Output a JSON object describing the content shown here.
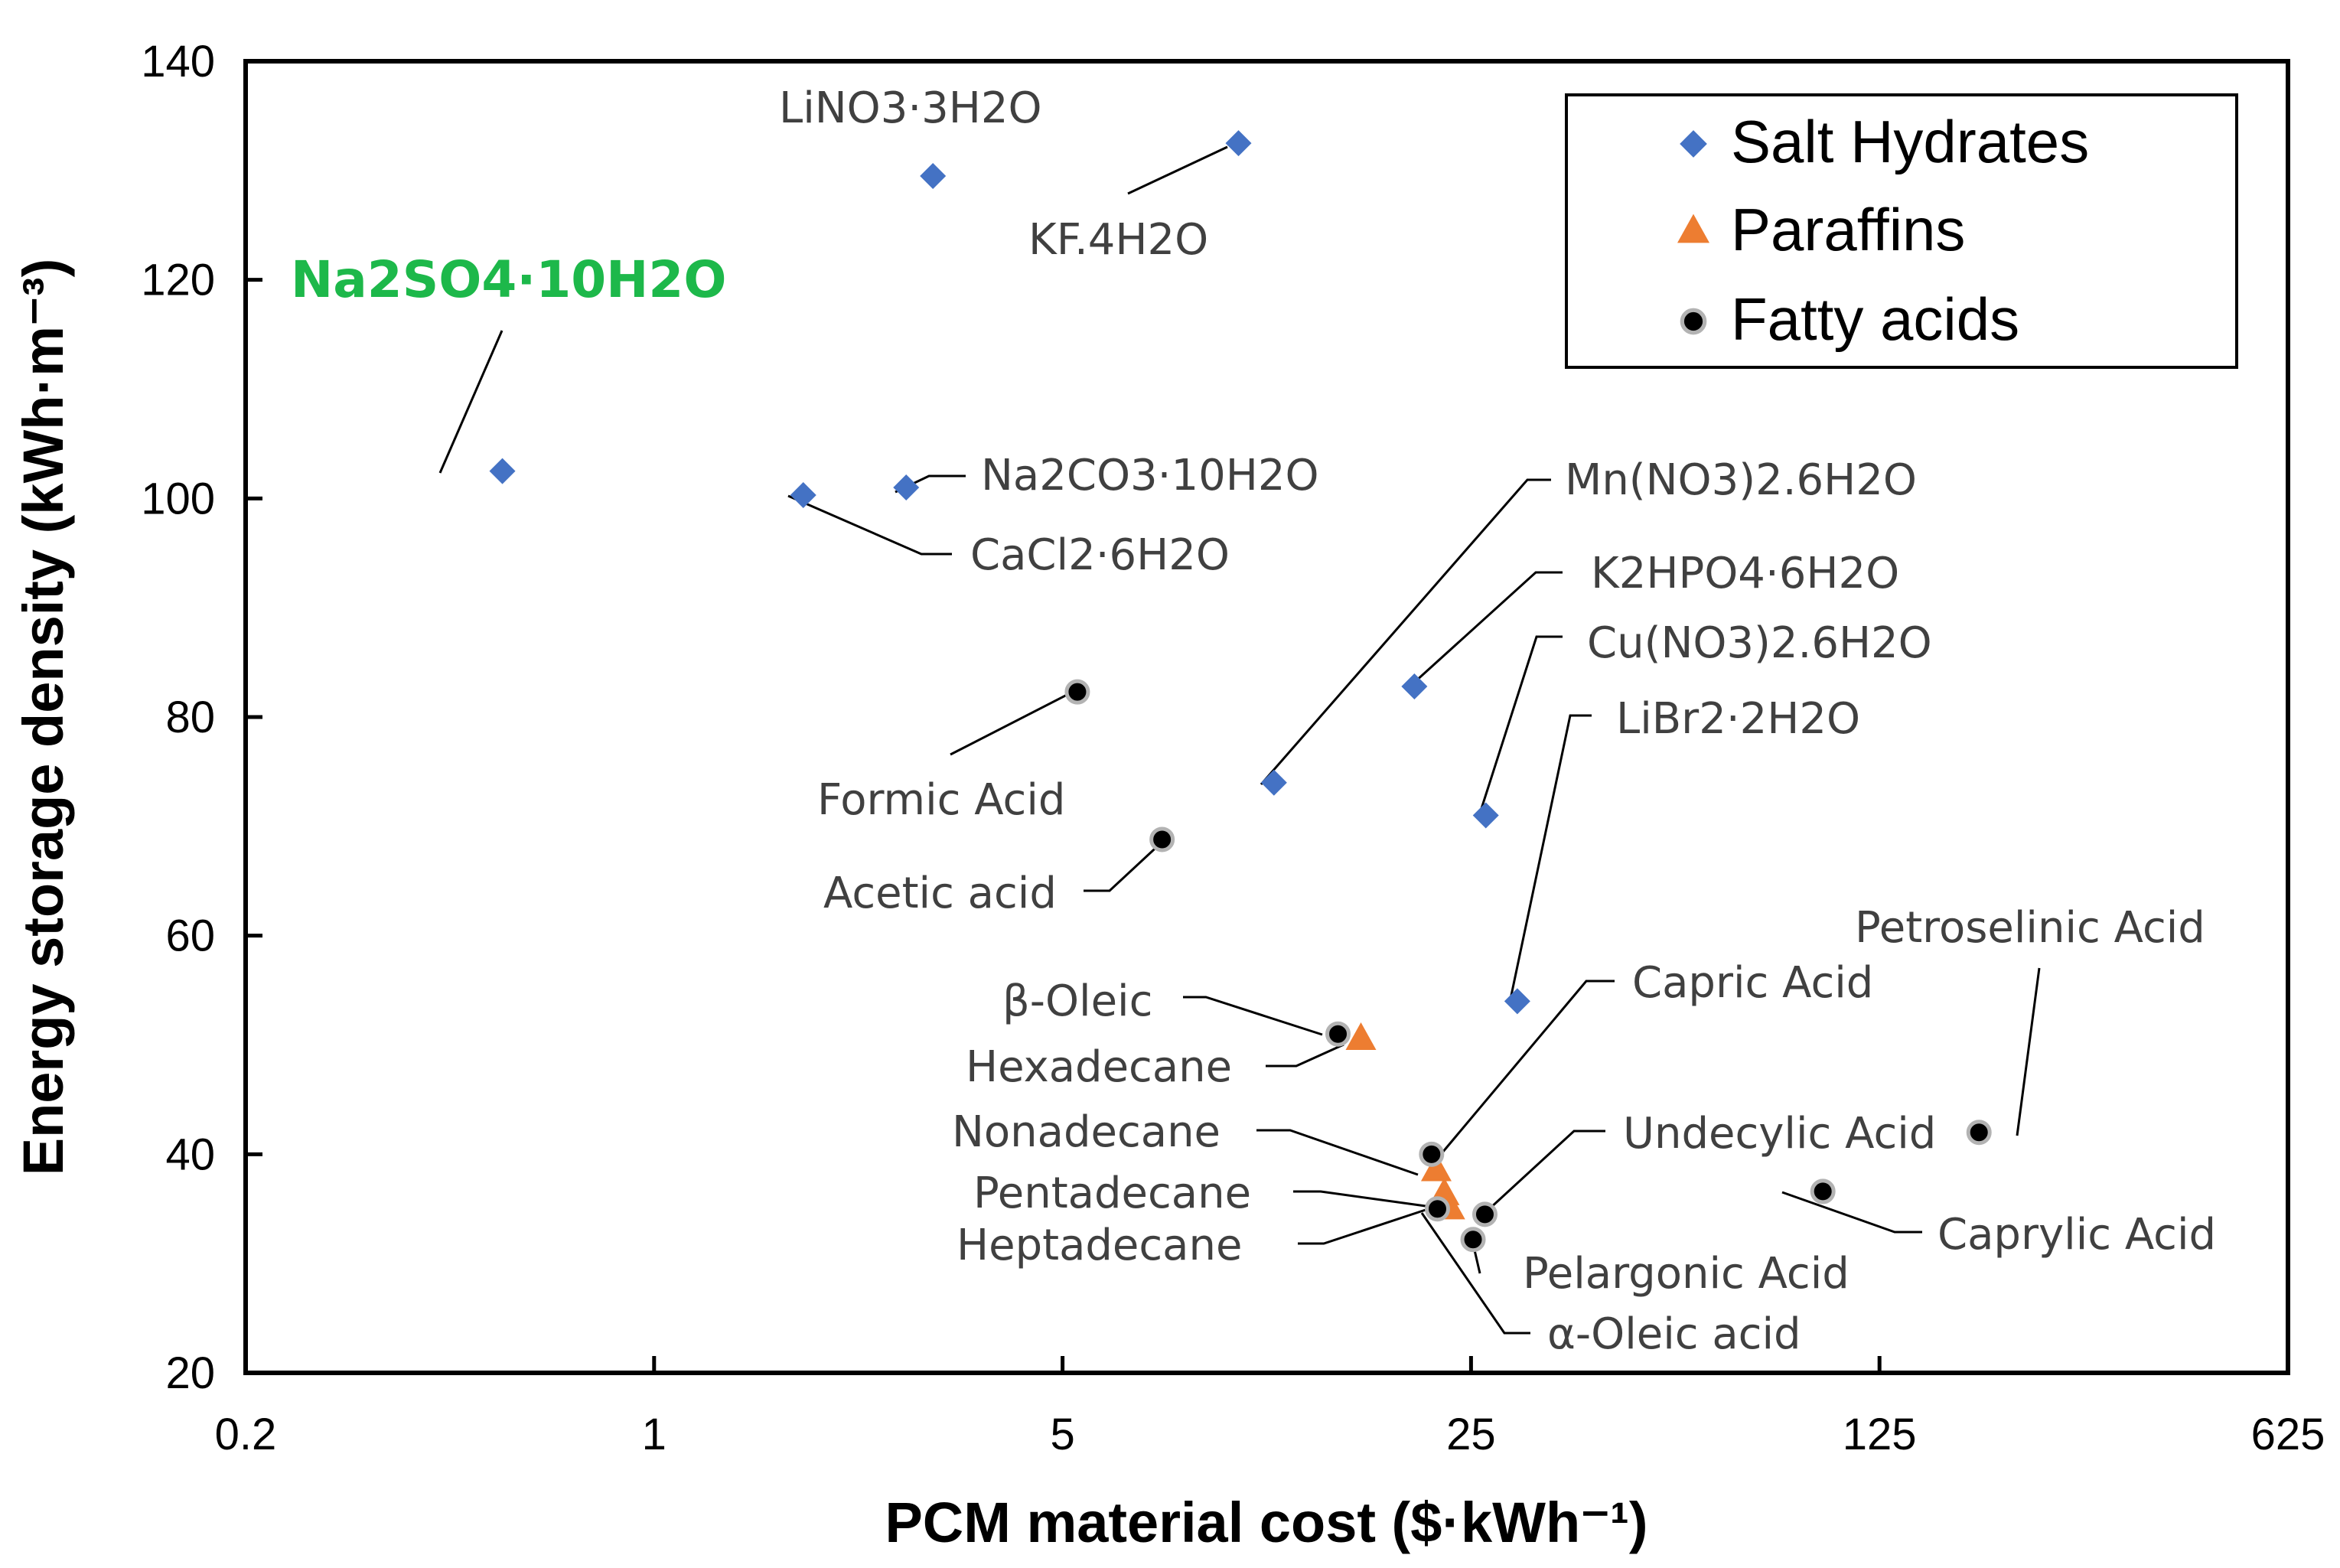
{
  "chart_data": {
    "type": "scatter",
    "x_scale": "log",
    "x_ticks": [
      0.2,
      1,
      5,
      25,
      125,
      625
    ],
    "x_tick_labels": [
      "0.2",
      "1",
      "5",
      "25",
      "125",
      "625"
    ],
    "xlim": [
      0.2,
      625
    ],
    "y_ticks": [
      20,
      40,
      60,
      80,
      100,
      120,
      140
    ],
    "y_tick_labels": [
      "20",
      "40",
      "60",
      "80",
      "100",
      "120",
      "140"
    ],
    "ylim": [
      20,
      140
    ],
    "xlabel": "PCM material cost ($·kWh⁻¹)",
    "ylabel": "Energy storage density (kWh·m⁻³)",
    "legend_position": "top-right",
    "series": [
      {
        "name": "Salt Hydrates",
        "marker": "diamond",
        "color": "#4472c4",
        "points": [
          {
            "label": "Na2SO4·10H2O",
            "x": 0.55,
            "y": 102.5,
            "highlight": true
          },
          {
            "label": "LiNO3·3H2O",
            "x": 3.0,
            "y": 129.5
          },
          {
            "label": "KF.4H2O",
            "x": 10.0,
            "y": 132.5
          },
          {
            "label": "Na2CO3·10H2O",
            "x": 2.7,
            "y": 101
          },
          {
            "label": "CaCl2·6H2O",
            "x": 1.8,
            "y": 100.3
          },
          {
            "label": "Mn(NO3)2.6H2O",
            "x": 11.5,
            "y": 74
          },
          {
            "label": "K2HPO4·6H2O",
            "x": 20,
            "y": 82.8
          },
          {
            "label": "Cu(NO3)2.6H2O",
            "x": 26.5,
            "y": 71
          },
          {
            "label": "LiBr2·2H2O",
            "x": 30,
            "y": 54
          }
        ]
      },
      {
        "name": "Paraffins",
        "marker": "triangle",
        "color": "#ed7d31",
        "points": [
          {
            "label": "Hexadecane",
            "x": 16.2,
            "y": 50.5
          },
          {
            "label": "Nonadecane",
            "x": 21.8,
            "y": 38.5
          },
          {
            "label": "Pentadecane",
            "x": 22.5,
            "y": 36.3
          },
          {
            "label": "Heptadecane",
            "x": 23.0,
            "y": 35.0
          }
        ]
      },
      {
        "name": "Fatty acids",
        "marker": "circle",
        "color": "#000000",
        "points": [
          {
            "label": "Formic Acid",
            "x": 5.3,
            "y": 82.3
          },
          {
            "label": "Acetic acid",
            "x": 7.4,
            "y": 68.8
          },
          {
            "label": "β-Oleic",
            "x": 14.8,
            "y": 51
          },
          {
            "label": "Capric Acid",
            "x": 21.4,
            "y": 40
          },
          {
            "label": "Undecylic Acid",
            "x": 26.4,
            "y": 34.5
          },
          {
            "label": "Pelargonic Acid",
            "x": 25.2,
            "y": 32.2
          },
          {
            "label": "α-Oleic acid",
            "x": 21.9,
            "y": 35.0
          },
          {
            "label": "Petroselinic Acid",
            "x": 185,
            "y": 42
          },
          {
            "label": "Caprylic Acid",
            "x": 100,
            "y": 36.6
          }
        ]
      }
    ]
  }
}
